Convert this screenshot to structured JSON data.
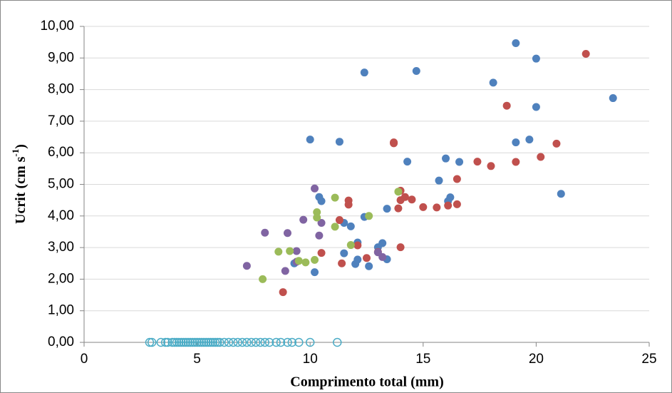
{
  "chart_data": {
    "type": "scatter",
    "x_label": "Comprimento total (mm)",
    "y_label": [
      "Ucrit (cm s",
      "-1",
      ")"
    ],
    "xlim": [
      0,
      25
    ],
    "xticks": [
      0,
      5,
      10,
      15,
      20,
      25
    ],
    "ylim": [
      0,
      10
    ],
    "yticks": [
      {
        "value": 0,
        "label": "0,00"
      },
      {
        "value": 1,
        "label": "1,00"
      },
      {
        "value": 2,
        "label": "2,00"
      },
      {
        "value": 3,
        "label": "3,00"
      },
      {
        "value": 4,
        "label": "4,00"
      },
      {
        "value": 5,
        "label": "5,00"
      },
      {
        "value": 6,
        "label": "6,00"
      },
      {
        "value": 7,
        "label": "7,00"
      },
      {
        "value": 8,
        "label": "8,00"
      },
      {
        "value": 9,
        "label": "9,00"
      },
      {
        "value": 10,
        "label": "10,00"
      }
    ],
    "grid": true,
    "series": [
      {
        "color": "#4f81bd",
        "hollow": false,
        "x": [
          19.1,
          20.0,
          18.1,
          20.0,
          23.4,
          12.4,
          14.7,
          10.0,
          11.3,
          19.1,
          19.7,
          16.0,
          16.6,
          14.3,
          15.7,
          16.1,
          16.2,
          21.1,
          10.4,
          10.5,
          11.5,
          11.8,
          12.4,
          13.4,
          12.1,
          13.2,
          13.0,
          11.5,
          12.1,
          12.0,
          12.6,
          13.4,
          9.3,
          10.2
        ],
        "y": [
          9.47,
          8.98,
          8.22,
          7.45,
          7.73,
          8.54,
          8.59,
          6.42,
          6.35,
          6.33,
          6.42,
          5.82,
          5.71,
          5.72,
          5.12,
          4.47,
          4.59,
          4.7,
          4.6,
          4.47,
          3.78,
          3.67,
          3.97,
          4.23,
          3.16,
          3.14,
          3.01,
          2.82,
          2.62,
          2.48,
          2.41,
          2.63,
          2.5,
          2.22
        ]
      },
      {
        "color": "#c0504d",
        "hollow": false,
        "x": [
          22.2,
          18.7,
          13.7,
          13.7,
          20.9,
          20.2,
          19.1,
          17.4,
          18.0,
          16.5,
          14.0,
          14.2,
          14.5,
          14.0,
          13.9,
          15.0,
          15.6,
          16.1,
          16.5,
          11.7,
          11.7,
          11.3,
          12.1,
          13.0,
          14.0,
          12.5,
          11.4,
          10.5,
          8.8
        ],
        "y": [
          9.13,
          7.49,
          6.33,
          6.3,
          6.29,
          5.87,
          5.71,
          5.72,
          5.58,
          5.17,
          4.8,
          4.6,
          4.52,
          4.5,
          4.24,
          4.28,
          4.27,
          4.33,
          4.37,
          4.49,
          4.36,
          3.87,
          3.07,
          2.86,
          3.01,
          2.67,
          2.5,
          2.83,
          1.59
        ]
      },
      {
        "color": "#8064a2",
        "hollow": false,
        "x": [
          10.2,
          10.5,
          9.7,
          10.4,
          8.0,
          9.0,
          9.4,
          9.4,
          8.9,
          7.2,
          13.2,
          13.0
        ],
        "y": [
          4.87,
          3.78,
          3.88,
          3.38,
          3.47,
          3.46,
          2.89,
          2.55,
          2.26,
          2.42,
          2.7,
          2.85
        ]
      },
      {
        "color": "#9bbb59",
        "hollow": false,
        "x": [
          13.9,
          11.1,
          10.3,
          10.3,
          11.1,
          12.6,
          11.8,
          8.6,
          9.1,
          9.5,
          9.8,
          10.2,
          7.9
        ],
        "y": [
          4.77,
          4.58,
          4.12,
          3.95,
          3.66,
          4.0,
          3.08,
          2.87,
          2.89,
          2.58,
          2.53,
          2.61,
          2.0
        ]
      },
      {
        "color": "#4bacc6",
        "hollow": true,
        "x": [
          2.9,
          3.0,
          3.4,
          3.6,
          3.7,
          3.9,
          4.0,
          4.1,
          4.2,
          4.3,
          4.4,
          4.5,
          4.6,
          4.7,
          4.8,
          4.9,
          5.0,
          5.1,
          5.2,
          5.3,
          5.4,
          5.5,
          5.6,
          5.7,
          5.8,
          5.9,
          6.0,
          6.2,
          6.4,
          6.6,
          6.8,
          7.0,
          7.2,
          7.4,
          7.6,
          7.8,
          8.0,
          8.2,
          8.5,
          8.7,
          9.0,
          9.2,
          9.5,
          10.0,
          11.2
        ],
        "y": [
          0,
          0,
          0,
          0,
          0,
          0,
          0,
          0,
          0,
          0,
          0,
          0,
          0,
          0,
          0,
          0,
          0,
          0,
          0,
          0,
          0,
          0,
          0,
          0,
          0,
          0,
          0,
          0,
          0,
          0,
          0,
          0,
          0,
          0,
          0,
          0,
          0,
          0,
          0,
          0,
          0,
          0,
          0,
          0,
          0
        ]
      }
    ]
  }
}
